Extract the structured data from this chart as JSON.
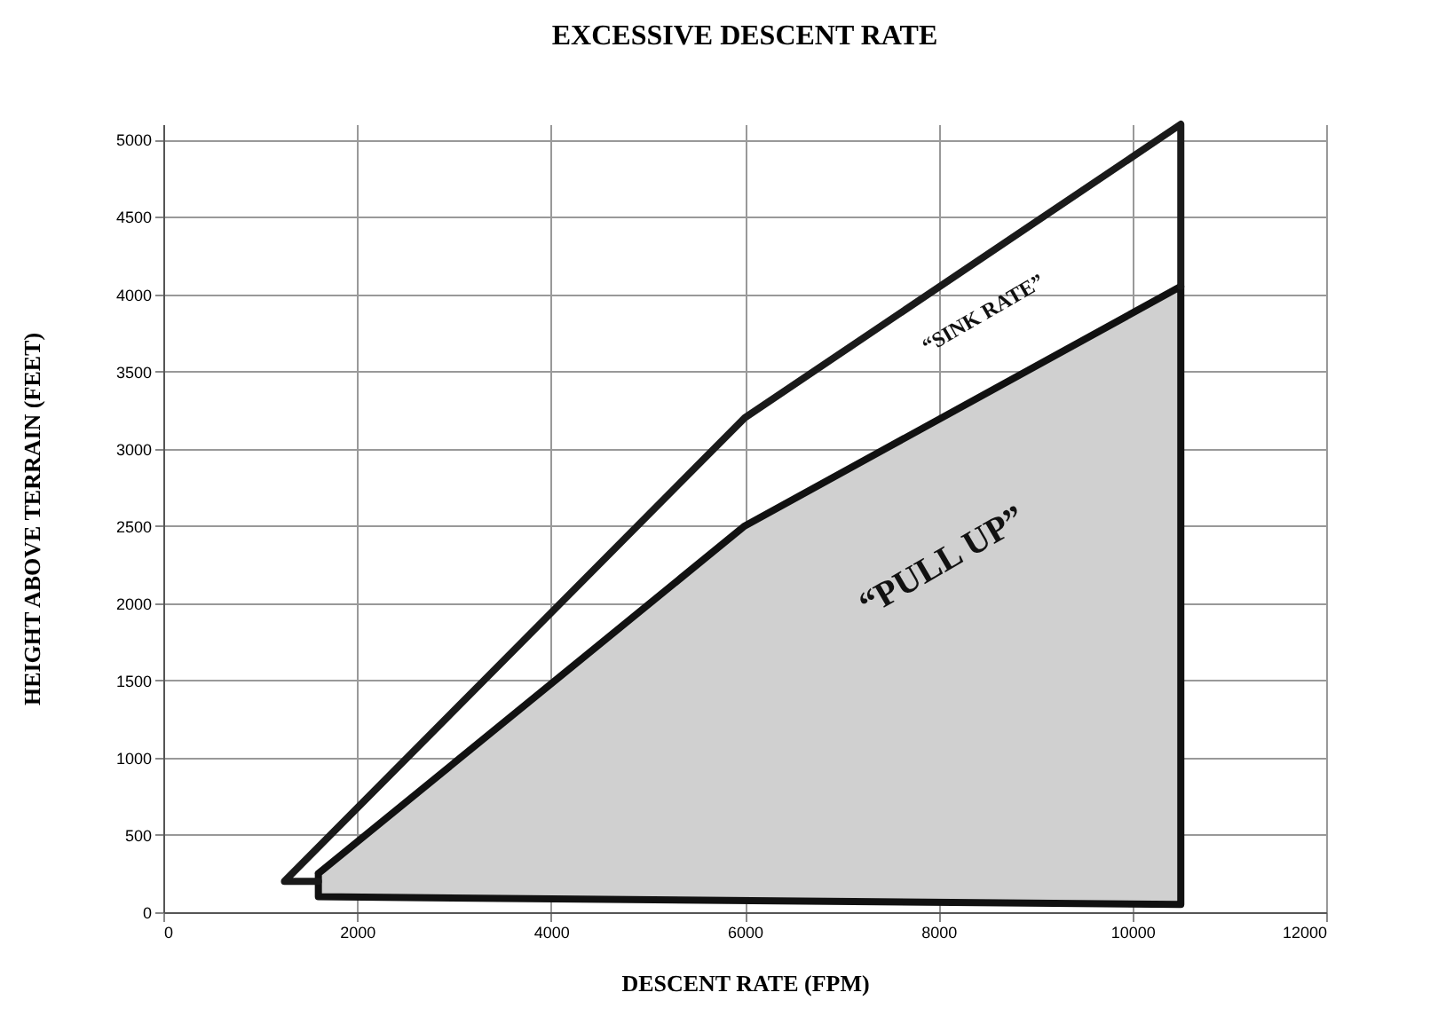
{
  "chart_data": {
    "type": "line",
    "title": "EXCESSIVE DESCENT RATE",
    "xlabel": "DESCENT RATE (FPM)",
    "ylabel": "HEIGHT ABOVE TERRAIN (FEET)",
    "xlim": [
      0,
      12000
    ],
    "xticks": [
      0,
      2000,
      4000,
      6000,
      8000,
      10000,
      12000
    ],
    "ylim": [
      0,
      5100
    ],
    "yticks": [
      0,
      500,
      1000,
      1500,
      2000,
      2500,
      3000,
      3500,
      4000,
      4500,
      5000
    ],
    "grid": true,
    "line_style": "solid",
    "series": [
      {
        "color": "#1a1a1a",
        "x": [
          1600,
          1250,
          6000,
          10500,
          10500
        ],
        "values": [
          200,
          200,
          3200,
          5100,
          4050
        ]
      },
      {
        "type": "area",
        "color": "#d0d0d0",
        "x": [
          1600,
          6000,
          10500,
          10500,
          1600,
          1600
        ],
        "values": [
          250,
          2500,
          4050,
          50,
          100,
          250
        ]
      }
    ],
    "annotations": [
      "“SINK RATE”",
      "“PULL UP”"
    ]
  }
}
